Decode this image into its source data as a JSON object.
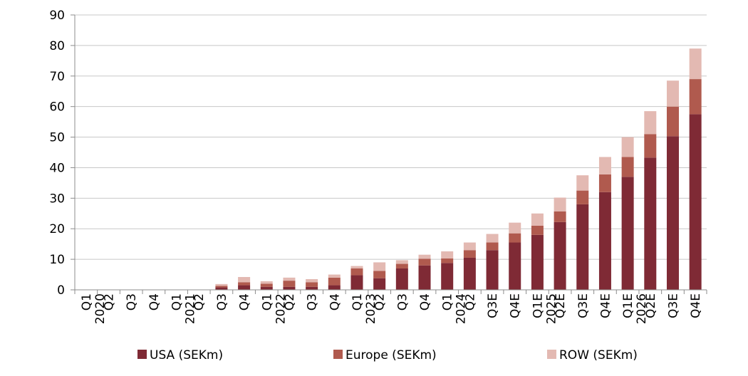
{
  "chart_data": {
    "type": "bar",
    "stacked": true,
    "categories": [
      "Q1 2020",
      "Q2",
      "Q3",
      "Q4",
      "Q1 2021",
      "Q2",
      "Q3",
      "Q4",
      "Q1 2022",
      "Q2",
      "Q3",
      "Q4",
      "Q1 2023",
      "Q2",
      "Q3",
      "Q4",
      "Q1 2024",
      "Q2",
      "Q3E",
      "Q4E",
      "Q1E 2025",
      "Q2E",
      "Q3E",
      "Q4E",
      "Q1E 2026",
      "Q2E",
      "Q3E",
      "Q4E"
    ],
    "tick_lines": [
      [
        "Q1",
        "2020"
      ],
      [
        "Q2"
      ],
      [
        "Q3"
      ],
      [
        "Q4"
      ],
      [
        "Q1",
        "2021"
      ],
      [
        "Q2"
      ],
      [
        "Q3"
      ],
      [
        "Q4"
      ],
      [
        "Q1",
        "2022"
      ],
      [
        "Q2"
      ],
      [
        "Q3"
      ],
      [
        "Q4"
      ],
      [
        "Q1",
        "2023"
      ],
      [
        "Q2"
      ],
      [
        "Q3"
      ],
      [
        "Q4"
      ],
      [
        "Q1",
        "2024"
      ],
      [
        "Q2"
      ],
      [
        "Q3E"
      ],
      [
        "Q4E"
      ],
      [
        "Q1E",
        "2025"
      ],
      [
        "Q2E"
      ],
      [
        "Q3E"
      ],
      [
        "Q4E"
      ],
      [
        "Q1E",
        "2026"
      ],
      [
        "Q2E"
      ],
      [
        "Q3E"
      ],
      [
        "Q4E"
      ]
    ],
    "series": [
      {
        "name": "USA (SEKm)",
        "color": "#7f2a35",
        "values": [
          0,
          0,
          0,
          0,
          0,
          0,
          0.8,
          1.5,
          1.0,
          1.0,
          1.0,
          1.5,
          4.8,
          3.8,
          7.0,
          8.0,
          8.8,
          10.5,
          13.0,
          15.5,
          18.0,
          22.2,
          28.0,
          32.0,
          37.0,
          43.3,
          50.3,
          57.5
        ]
      },
      {
        "name": "Europe (SEKm)",
        "color": "#b05a4e",
        "values": [
          0,
          0,
          0,
          0,
          0,
          0,
          0.5,
          1.0,
          1.0,
          2.0,
          1.5,
          2.5,
          2.2,
          2.4,
          1.5,
          2.2,
          1.5,
          2.5,
          2.5,
          3.0,
          3.0,
          3.5,
          4.5,
          5.8,
          6.5,
          7.7,
          9.7,
          11.5
        ]
      },
      {
        "name": "ROW (SEKm)",
        "color": "#e3b9b2",
        "values": [
          0,
          0,
          0,
          0,
          0,
          0,
          0.6,
          1.7,
          0.8,
          1.0,
          1.0,
          1.0,
          0.8,
          2.8,
          1.2,
          1.3,
          2.3,
          2.5,
          2.8,
          3.5,
          4.0,
          4.5,
          5.0,
          5.7,
          6.5,
          7.5,
          8.5,
          10.0
        ]
      }
    ],
    "ylim": [
      0,
      90
    ],
    "yticks": [
      0,
      10,
      20,
      30,
      40,
      50,
      60,
      70,
      80,
      90
    ],
    "grid": true,
    "legend_position": "bottom",
    "title": "",
    "xlabel": "",
    "ylabel": ""
  }
}
